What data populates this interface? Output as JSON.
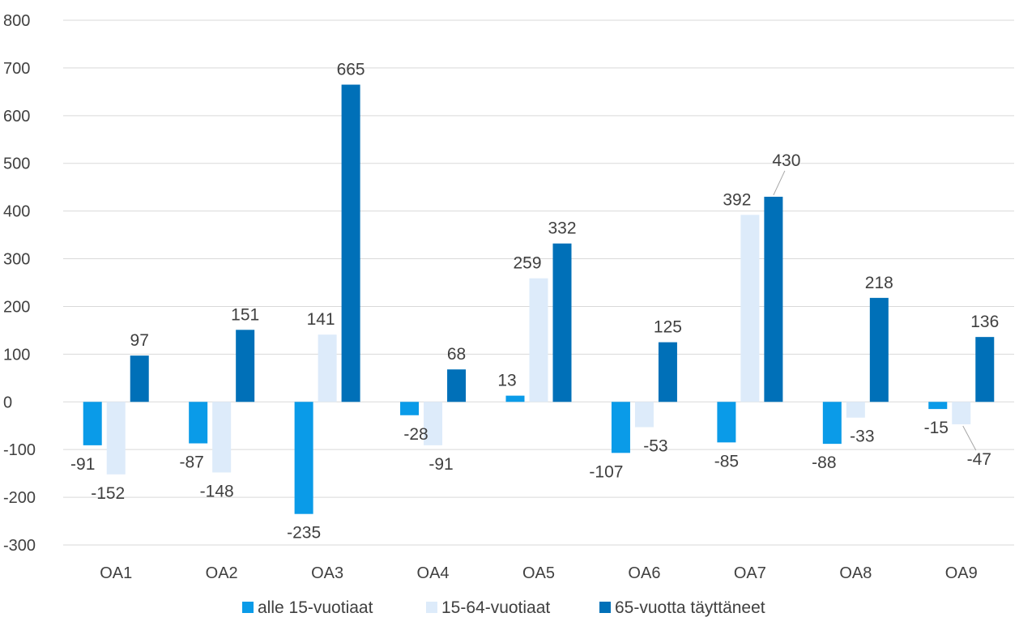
{
  "chart_data": {
    "type": "bar",
    "title": "",
    "xlabel": "",
    "ylabel": "",
    "ylim": [
      -300,
      800
    ],
    "yticks": [
      -300,
      -200,
      -100,
      0,
      100,
      200,
      300,
      400,
      500,
      600,
      700,
      800
    ],
    "grid": true,
    "legend_position": "bottom",
    "categories": [
      "OA1",
      "OA2",
      "OA3",
      "OA4",
      "OA5",
      "OA6",
      "OA7",
      "OA8",
      "OA9"
    ],
    "series": [
      {
        "name": "alle 15-vuotiaat",
        "color": "#0a9be8",
        "values": [
          -91,
          -87,
          -235,
          -28,
          13,
          -107,
          -85,
          -88,
          -15
        ]
      },
      {
        "name": "15-64-vuotiaat",
        "color": "#ddebfa",
        "values": [
          -152,
          -148,
          141,
          -91,
          259,
          -53,
          392,
          -33,
          -47
        ]
      },
      {
        "name": "65-vuotta täyttäneet",
        "color": "#0070b8",
        "values": [
          97,
          151,
          665,
          68,
          332,
          125,
          430,
          218,
          136
        ]
      }
    ]
  }
}
